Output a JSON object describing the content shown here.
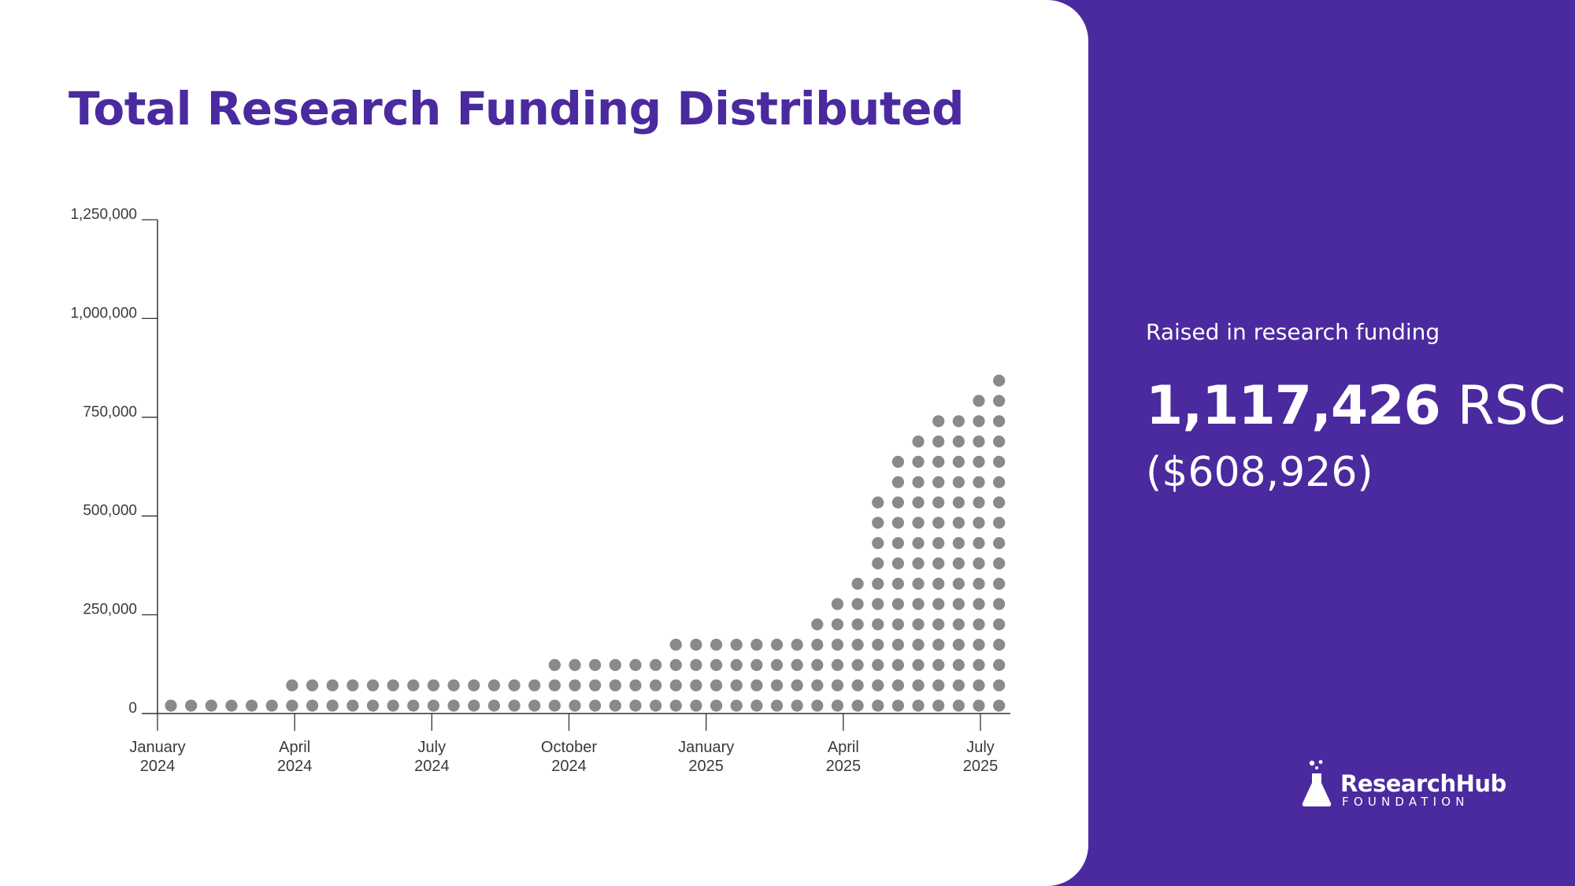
{
  "title": "Total Research Funding Distributed",
  "summary": {
    "label": "Raised in research funding",
    "rsc_amount": "1,117,426",
    "rsc_unit": "RSC",
    "usd_amount": "($608,926)"
  },
  "brand": {
    "name": "ResearchHub",
    "subtitle": "FOUNDATION",
    "icon": "flask-icon"
  },
  "colors": {
    "accent": "#4a2a9e",
    "dot": "#8a898c",
    "axis": "#333333",
    "background": "#ffffff"
  },
  "chart_data": {
    "type": "dot",
    "title": "Total Research Funding Distributed",
    "xlabel": "",
    "ylabel": "",
    "ylim": [
      0,
      1250000
    ],
    "dot_unit": 50000,
    "y_ticks": [
      {
        "value": 0,
        "label": "0"
      },
      {
        "value": 250000,
        "label": "250,000"
      },
      {
        "value": 500000,
        "label": "500,000"
      },
      {
        "value": 750000,
        "label": "750,000"
      },
      {
        "value": 1000000,
        "label": "1,000,000"
      },
      {
        "value": 1250000,
        "label": "1,250,000"
      }
    ],
    "x_ticks": [
      {
        "week": 0,
        "month": "January",
        "year": "2024"
      },
      {
        "week": 6.9,
        "month": "April",
        "year": "2024"
      },
      {
        "week": 13.8,
        "month": "July",
        "year": "2024"
      },
      {
        "week": 20.7,
        "month": "October",
        "year": "2024"
      },
      {
        "week": 27.6,
        "month": "January",
        "year": "2025"
      },
      {
        "week": 34.5,
        "month": "April",
        "year": "2025"
      },
      {
        "week": 41.4,
        "month": "July",
        "year": "2025"
      }
    ],
    "x_start_date": "January 2024",
    "period": "biweekly",
    "cumulative_values": [
      50000,
      50000,
      50000,
      50000,
      50000,
      50000,
      100000,
      100000,
      100000,
      100000,
      100000,
      100000,
      100000,
      100000,
      100000,
      100000,
      100000,
      100000,
      100000,
      150000,
      150000,
      150000,
      150000,
      150000,
      150000,
      200000,
      200000,
      200000,
      200000,
      200000,
      200000,
      200000,
      250000,
      300000,
      350000,
      550000,
      650000,
      700000,
      750000,
      750000,
      800000,
      850000
    ]
  }
}
